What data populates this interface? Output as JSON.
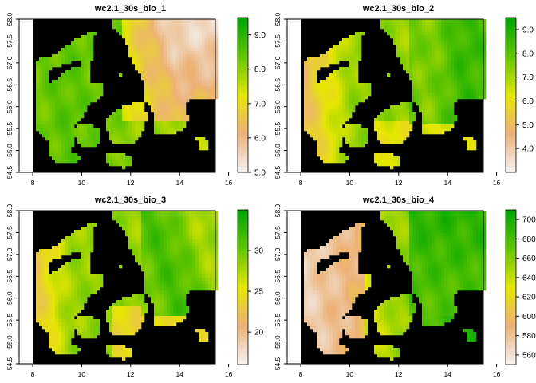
{
  "chart_data": [
    {
      "type": "heatmap",
      "title": "wc2.1_30s_bio_1",
      "xlabel": "",
      "ylabel": "",
      "xlim": [
        8,
        16
      ],
      "ylim": [
        54.5,
        58.0
      ],
      "x_ticks": [
        "8",
        "10",
        "12",
        "14",
        "16"
      ],
      "y_ticks": [
        "54.5",
        "55.0",
        "55.5",
        "56.0",
        "56.5",
        "57.0",
        "57.5",
        "58.0"
      ],
      "colorbar": {
        "min": 5.0,
        "max": 9.5,
        "ticks": [
          "5.0",
          "6.0",
          "7.0",
          "8.0",
          "9.0"
        ],
        "palette": "terrain"
      },
      "field": "west-warm"
    },
    {
      "type": "heatmap",
      "title": "wc2.1_30s_bio_2",
      "xlabel": "",
      "ylabel": "",
      "xlim": [
        8,
        16
      ],
      "ylim": [
        54.5,
        58.0
      ],
      "x_ticks": [
        "8",
        "10",
        "12",
        "14",
        "16"
      ],
      "y_ticks": [
        "54.5",
        "55.0",
        "55.5",
        "56.0",
        "56.5",
        "57.0",
        "57.5",
        "58.0"
      ],
      "colorbar": {
        "min": 3.0,
        "max": 9.5,
        "ticks": [
          "4.0",
          "5.0",
          "6.0",
          "7.0",
          "8.0",
          "9.0"
        ],
        "palette": "terrain"
      },
      "field": "east-high"
    },
    {
      "type": "heatmap",
      "title": "wc2.1_30s_bio_3",
      "xlabel": "",
      "ylabel": "",
      "xlim": [
        8,
        16
      ],
      "ylim": [
        54.5,
        58.0
      ],
      "x_ticks": [
        "8",
        "10",
        "12",
        "14",
        "16"
      ],
      "y_ticks": [
        "54.5",
        "55.0",
        "55.5",
        "56.0",
        "56.5",
        "57.0",
        "57.5",
        "58.0"
      ],
      "colorbar": {
        "min": 16,
        "max": 35,
        "ticks": [
          "20",
          "25",
          "30"
        ],
        "palette": "terrain"
      },
      "field": "east-high-mid"
    },
    {
      "type": "heatmap",
      "title": "wc2.1_30s_bio_4",
      "xlabel": "",
      "ylabel": "",
      "xlim": [
        8,
        16
      ],
      "ylim": [
        54.5,
        58.0
      ],
      "x_ticks": [
        "8",
        "10",
        "12",
        "14",
        "16"
      ],
      "y_ticks": [
        "54.5",
        "55.0",
        "55.5",
        "56.0",
        "56.5",
        "57.0",
        "57.5",
        "58.0"
      ],
      "colorbar": {
        "min": 550,
        "max": 710,
        "ticks": [
          "560",
          "580",
          "600",
          "620",
          "640",
          "660",
          "680",
          "700"
        ],
        "palette": "terrain"
      },
      "field": "east-high-strong"
    }
  ],
  "colors": {
    "sea": "#000000",
    "terrain": [
      "#f2f2f2",
      "#ecb176",
      "#e6e600",
      "#63c600",
      "#00a600"
    ]
  }
}
